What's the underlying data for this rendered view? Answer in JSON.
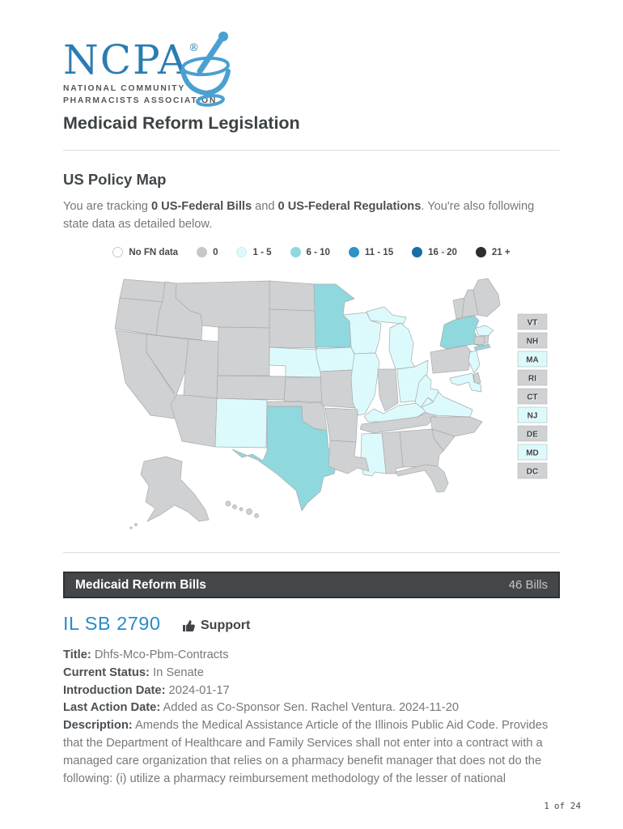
{
  "logo": {
    "acronym": "NCPA",
    "registered": "®",
    "line1": "NATIONAL COMMUNITY",
    "line2": "PHARMACISTS ASSOCIATION",
    "brand_color": "#2b7cb3",
    "icon_color": "#4aa0d0"
  },
  "page_title": "Medicaid Reform Legislation",
  "policy_map": {
    "heading": "US Policy Map",
    "intro": {
      "pre": "You are tracking ",
      "bold1": "0 US-Federal Bills",
      "mid": " and ",
      "bold2": "0 US-Federal Regulations",
      "post": ". You're also following state data as detailed below."
    },
    "legend": [
      {
        "label": "No FN data",
        "color": "#ffffff",
        "border": "#c6c8c9"
      },
      {
        "label": "0",
        "color": "#c6c7c8",
        "border": "#c6c7c8"
      },
      {
        "label": "1 - 5",
        "color": "#dcfafb",
        "border": "#c9eef0"
      },
      {
        "label": "6 - 10",
        "color": "#8ed8de",
        "border": "#8ed8de"
      },
      {
        "label": "11 - 15",
        "color": "#2f93c8",
        "border": "#2f93c8"
      },
      {
        "label": "16 - 20",
        "color": "#1a6fa5",
        "border": "#1a6fa5"
      },
      {
        "label": "21 +",
        "color": "#2b2e30",
        "border": "#2b2e30"
      }
    ],
    "categories": {
      "default": "#d0d1d2",
      "c1_5": "#dcfafb",
      "c6_10": "#8ed8de"
    },
    "states": {
      "MN": "c6_10",
      "NY": "c6_10",
      "TX": "c6_10",
      "NE": "c1_5",
      "IA": "c1_5",
      "WI": "c1_5",
      "MI": "c1_5",
      "IL": "c1_5",
      "OH": "c1_5",
      "KY": "c1_5",
      "WV": "c1_5",
      "VA": "c1_5",
      "MS": "c1_5",
      "NM": "c1_5",
      "MA": "c1_5",
      "NJ": "c1_5",
      "MD": "c1_5"
    },
    "small_states": [
      {
        "label": "VT",
        "cat": "default"
      },
      {
        "label": "NH",
        "cat": "default"
      },
      {
        "label": "MA",
        "cat": "c1_5"
      },
      {
        "label": "RI",
        "cat": "default"
      },
      {
        "label": "CT",
        "cat": "default"
      },
      {
        "label": "NJ",
        "cat": "c1_5"
      },
      {
        "label": "DE",
        "cat": "default"
      },
      {
        "label": "MD",
        "cat": "c1_5"
      },
      {
        "label": "DC",
        "cat": "default"
      }
    ],
    "watermark": "H"
  },
  "bills_section": {
    "header": "Medicaid Reform Bills",
    "count": "46 Bills"
  },
  "bill": {
    "id": "IL SB 2790",
    "position_label": "Support",
    "fields": [
      {
        "label": "Title:",
        "value": "Dhfs-Mco-Pbm-Contracts"
      },
      {
        "label": "Current Status:",
        "value": "In Senate"
      },
      {
        "label": "Introduction Date:",
        "value": "2024-01-17"
      },
      {
        "label": "Last Action Date:",
        "value": "Added as Co-Sponsor Sen. Rachel Ventura. 2024-11-20"
      },
      {
        "label": "Description:",
        "value": "Amends the Medical Assistance Article of the Illinois Public Aid Code. Provides that the Department of Healthcare and Family Services shall not enter into a contract with a managed care organization that relies on a pharmacy benefit manager that does not do the following: (i) utilize a pharmacy reimbursement methodology of the lesser of national"
      }
    ]
  },
  "footer": {
    "page": "1",
    "of": "of 24"
  }
}
